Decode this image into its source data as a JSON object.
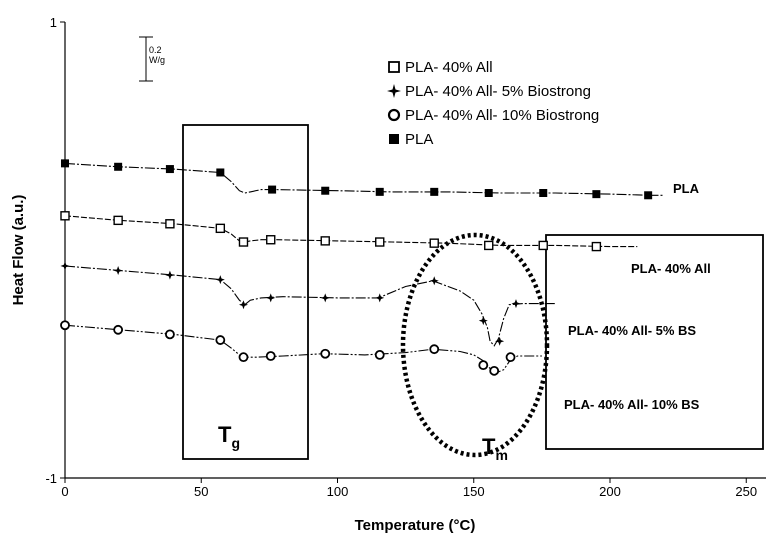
{
  "chart_data": {
    "type": "line",
    "xlabel": "Temperature (°C)",
    "ylabel": "Heat Flow (a.u.)",
    "xlim": [
      0,
      260
    ],
    "ylim": [
      -1,
      1
    ],
    "xticks": [
      "0",
      "50",
      "100",
      "150",
      "200",
      "250"
    ],
    "yticks": [
      "1",
      "-1"
    ],
    "scale_bar": {
      "line1": "0.2",
      "line2": "W/g",
      "value": 0.2
    },
    "legend_position": "top-right",
    "annotations": {
      "tg_main": "T",
      "tg_sub": "g",
      "tm_main": "T",
      "tm_sub": "m"
    },
    "series": [
      {
        "name": "PLA- 40% All",
        "label": "PLA- 40% All",
        "marker": "open-square",
        "dash": "6,2",
        "x": [
          0,
          20,
          40,
          57,
          61,
          64,
          66,
          68,
          72,
          77,
          100,
          120,
          140,
          160,
          180,
          200,
          210
        ],
        "y": [
          0.15,
          0.13,
          0.115,
          0.095,
          0.07,
          0.04,
          0.035,
          0.04,
          0.045,
          0.045,
          0.04,
          0.035,
          0.03,
          0.02,
          0.02,
          0.015,
          0.015
        ],
        "marker_x": [
          0,
          19.5,
          38.5,
          57,
          65.5,
          75.5,
          95.5,
          115.5,
          135.5,
          155.5,
          175.5,
          195
        ],
        "marker_y": [
          0.15,
          0.13,
          0.115,
          0.095,
          0.035,
          0.045,
          0.04,
          0.035,
          0.03,
          0.02,
          0.02,
          0.015
        ]
      },
      {
        "name": "PLA- 40% All- 5% Biostrong",
        "label": "PLA- 40% All- 5% BS",
        "marker": "plus-star",
        "dash": "10,2,2,2",
        "x": [
          0,
          20,
          40,
          57,
          61,
          64,
          66,
          68,
          72,
          80,
          100,
          115,
          125,
          135,
          145,
          150,
          153,
          155,
          156,
          157.5,
          159,
          161,
          163,
          168,
          180
        ],
        "y": [
          -0.07,
          -0.09,
          -0.11,
          -0.13,
          -0.17,
          -0.22,
          -0.24,
          -0.22,
          -0.21,
          -0.205,
          -0.21,
          -0.21,
          -0.16,
          -0.135,
          -0.18,
          -0.22,
          -0.28,
          -0.34,
          -0.4,
          -0.42,
          -0.39,
          -0.3,
          -0.24,
          -0.235,
          -0.235
        ],
        "marker_x": [
          0,
          19.5,
          38.5,
          57,
          65.5,
          75.5,
          95.5,
          115.5,
          135.5,
          153.5,
          159.5,
          165.5
        ],
        "marker_y": [
          -0.07,
          -0.09,
          -0.11,
          -0.13,
          -0.24,
          -0.21,
          -0.21,
          -0.21,
          -0.135,
          -0.31,
          -0.4,
          -0.235
        ]
      },
      {
        "name": "PLA- 40% All- 10% Biostrong",
        "label": "PLA- 40% All- 10% BS",
        "marker": "open-circle",
        "dash": "10,2,2,2,2,2",
        "x": [
          0,
          20,
          40,
          57,
          61,
          64,
          66,
          70,
          80,
          95,
          110,
          125,
          135,
          145,
          150,
          154,
          156,
          158,
          161,
          163,
          166,
          175
        ],
        "y": [
          -0.33,
          -0.35,
          -0.37,
          -0.395,
          -0.43,
          -0.46,
          -0.47,
          -0.47,
          -0.465,
          -0.455,
          -0.46,
          -0.45,
          -0.435,
          -0.445,
          -0.46,
          -0.49,
          -0.52,
          -0.54,
          -0.525,
          -0.49,
          -0.465,
          -0.465
        ],
        "marker_x": [
          0,
          19.5,
          38.5,
          57,
          65.5,
          75.5,
          95.5,
          115.5,
          135.5,
          153.5,
          157.5,
          163.5
        ],
        "marker_y": [
          -0.33,
          -0.35,
          -0.37,
          -0.395,
          -0.47,
          -0.465,
          -0.455,
          -0.46,
          -0.435,
          -0.505,
          -0.53,
          -0.47
        ]
      },
      {
        "name": "PLA",
        "label": "PLA",
        "marker": "filled-square",
        "dash": "10,2,2,2",
        "x": [
          0,
          20,
          40,
          57,
          61,
          64,
          66,
          68,
          72,
          77,
          100,
          120,
          140,
          160,
          180,
          200,
          215,
          220
        ],
        "y": [
          0.38,
          0.365,
          0.355,
          0.34,
          0.3,
          0.26,
          0.25,
          0.255,
          0.265,
          0.265,
          0.26,
          0.255,
          0.255,
          0.25,
          0.25,
          0.245,
          0.24,
          0.24
        ],
        "marker_x": [
          0,
          19.5,
          38.5,
          57,
          76,
          95.5,
          115.5,
          135.5,
          155.5,
          175.5,
          195,
          214
        ],
        "marker_y": [
          0.38,
          0.365,
          0.355,
          0.34,
          0.265,
          0.26,
          0.255,
          0.255,
          0.25,
          0.25,
          0.245,
          0.24
        ]
      }
    ]
  },
  "colors": {
    "line": "#000000",
    "background": "#ffffff"
  }
}
